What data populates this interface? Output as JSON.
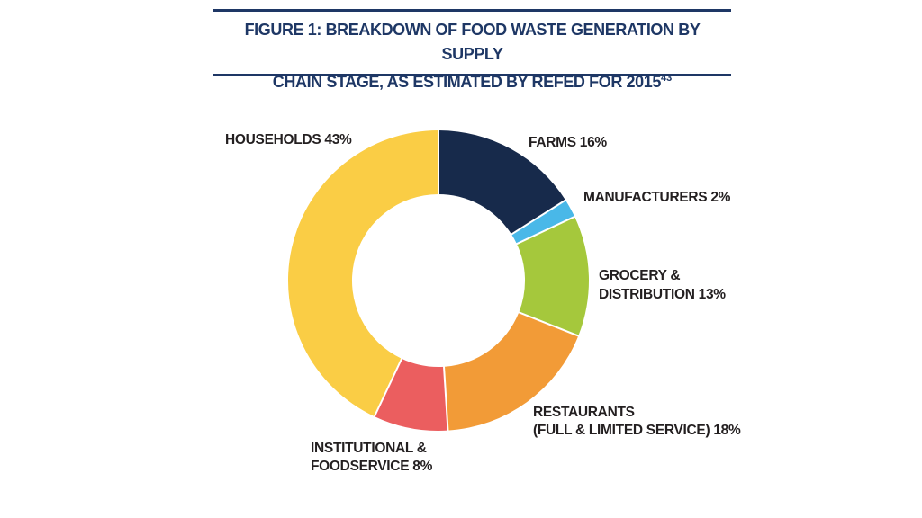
{
  "figure": {
    "title_line1": "FIGURE 1: BREAKDOWN OF FOOD WASTE GENERATION BY SUPPLY",
    "title_line2": "CHAIN STAGE, AS ESTIMATED BY REFED FOR 2015",
    "title_footnote": "43",
    "title_color": "#1e3765",
    "rule_color": "#1e3765"
  },
  "chart_data": {
    "type": "pie",
    "subtype": "donut",
    "title": "FIGURE 1: BREAKDOWN OF FOOD WASTE GENERATION BY SUPPLY CHAIN STAGE, AS ESTIMATED BY REFED FOR 2015",
    "unit": "%",
    "start_angle_deg": 0,
    "clockwise": true,
    "donut_hole_ratio": 0.575,
    "separator_color": "#ffffff",
    "label_color": "#231f20",
    "segments": [
      {
        "label": "FARMS",
        "value": 16,
        "color": "#172a4b",
        "callout_lines": [
          "FARMS 16%"
        ]
      },
      {
        "label": "MANUFACTURERS",
        "value": 2,
        "color": "#49b8e8",
        "callout_lines": [
          "MANUFACTURERS 2%"
        ]
      },
      {
        "label": "GROCERY & DISTRIBUTION",
        "value": 13,
        "color": "#a5c83c",
        "callout_lines": [
          "GROCERY &",
          "DISTRIBUTION 13%"
        ]
      },
      {
        "label": "RESTAURANTS (FULL & LIMITED SERVICE)",
        "value": 18,
        "color": "#f29b37",
        "callout_lines": [
          "RESTAURANTS",
          "(FULL & LIMITED SERVICE) 18%"
        ]
      },
      {
        "label": "INSTITUTIONAL & FOODSERVICE",
        "value": 8,
        "color": "#eb5e5f",
        "callout_lines": [
          "INSTITUTIONAL &",
          "FOODSERVICE 8%"
        ]
      },
      {
        "label": "HOUSEHOLDS",
        "value": 43,
        "color": "#facd45",
        "callout_lines": [
          "HOUSEHOLDS 43%"
        ]
      }
    ]
  }
}
